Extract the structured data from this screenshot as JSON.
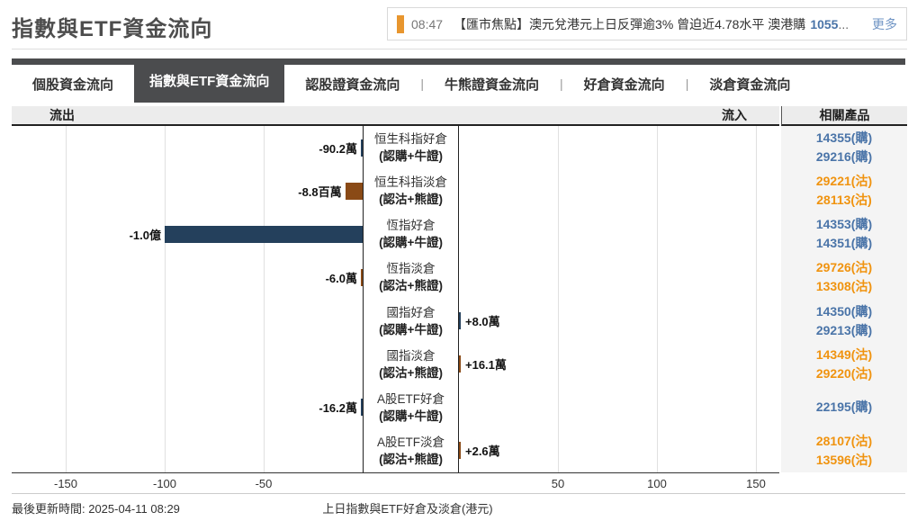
{
  "page": {
    "title": "指數與ETF資金流向"
  },
  "news": {
    "flag_color": "#e8962e",
    "time": "08:47",
    "headline": "【匯市焦點】澳元兌港元上日反彈逾3% 曾迫近4.78水平 澳港購",
    "code": "1055",
    "ellipsis": "...",
    "more_label": "更多"
  },
  "tabs": [
    {
      "label": "個股資金流向",
      "active": false
    },
    {
      "label": "指數與ETF資金流向",
      "active": true
    },
    {
      "label": "認股證資金流向",
      "active": false
    },
    {
      "label": "牛熊證資金流向",
      "active": false
    },
    {
      "label": "好倉資金流向",
      "active": false
    },
    {
      "label": "淡倉資金流向",
      "active": false
    }
  ],
  "chart": {
    "outflow_label": "流出",
    "inflow_label": "流入",
    "products_label": "相關產品"
  },
  "footer": {
    "updated": "最後更新時間: 2025-04-11 08:29",
    "caption": "上日指數與ETF好倉及淡倉(港元)"
  },
  "colors": {
    "long_bar": "#24405c",
    "short_bar": "#8a4a16",
    "call_blue": "#4a74a8",
    "put_orange": "#f0930f",
    "tab_dark": "#4b4c4e",
    "news_flag_orange": "#e8962e"
  },
  "chart_data": {
    "type": "bar",
    "orientation": "horizontal",
    "title": "上日指數與ETF好倉及淡倉(港元)",
    "axis_ticks": [
      -150,
      -100,
      -50,
      50,
      100,
      150
    ],
    "xlim": [
      -177,
      162
    ],
    "grid": true,
    "categories": [
      "恒生科指好倉(認購+牛證)",
      "恒生科指淡倉(認沽+熊證)",
      "恆指好倉(認購+牛證)",
      "恆指淡倉(認沽+熊證)",
      "國指好倉(認購+牛證)",
      "國指淡倉(認沽+熊證)",
      "A股ETF好倉(認購+牛證)",
      "A股ETF淡倉(認沽+熊證)"
    ],
    "values_millions_hkd": [
      -0.902,
      -8.8,
      -100,
      -0.06,
      0.08,
      0.161,
      -0.162,
      0.026
    ],
    "value_labels": [
      "-90.2萬",
      "-8.8百萬",
      "-1.0億",
      "-6.0萬",
      "+8.0萬",
      "+16.1萬",
      "-16.2萬",
      "+2.6萬"
    ],
    "rows": [
      {
        "label1": "恒生科指好倉",
        "label2": "(認購+牛證)",
        "value_label": "-90.2萬",
        "value_millions": -0.902,
        "side": "long",
        "products": [
          "14355(購)",
          "29216(購)"
        ]
      },
      {
        "label1": "恒生科指淡倉",
        "label2": "(認沽+熊證)",
        "value_label": "-8.8百萬",
        "value_millions": -8.8,
        "side": "short",
        "products": [
          "29221(沽)",
          "28113(沽)"
        ]
      },
      {
        "label1": "恆指好倉",
        "label2": "(認購+牛證)",
        "value_label": "-1.0億",
        "value_millions": -100,
        "side": "long",
        "products": [
          "14353(購)",
          "14351(購)"
        ]
      },
      {
        "label1": "恆指淡倉",
        "label2": "(認沽+熊證)",
        "value_label": "-6.0萬",
        "value_millions": -0.06,
        "side": "short",
        "products": [
          "29726(沽)",
          "13308(沽)"
        ]
      },
      {
        "label1": "國指好倉",
        "label2": "(認購+牛證)",
        "value_label": "+8.0萬",
        "value_millions": 0.08,
        "side": "long",
        "products": [
          "14350(購)",
          "29213(購)"
        ]
      },
      {
        "label1": "國指淡倉",
        "label2": "(認沽+熊證)",
        "value_label": "+16.1萬",
        "value_millions": 0.161,
        "side": "short",
        "products": [
          "14349(沽)",
          "29220(沽)"
        ]
      },
      {
        "label1": "A股ETF好倉",
        "label2": "(認購+牛證)",
        "value_label": "-16.2萬",
        "value_millions": -0.162,
        "side": "long",
        "products": [
          "22195(購)"
        ]
      },
      {
        "label1": "A股ETF淡倉",
        "label2": "(認沽+熊證)",
        "value_label": "+2.6萬",
        "value_millions": 0.026,
        "side": "short",
        "products": [
          "28107(沽)",
          "13596(沽)"
        ]
      }
    ]
  }
}
